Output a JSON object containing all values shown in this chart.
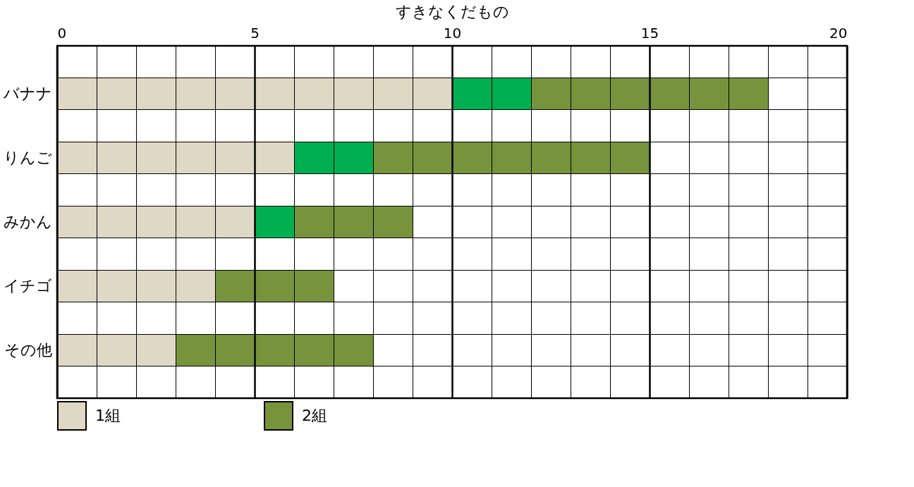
{
  "chart_data": {
    "type": "bar",
    "orientation": "horizontal",
    "stacked": true,
    "title": "すきなくだもの",
    "categories": [
      null,
      "バナナ",
      null,
      "りんご",
      null,
      "みかん",
      null,
      "イチゴ",
      null,
      "その他",
      null
    ],
    "series": [
      {
        "name": "1組",
        "color": "#ddd9c4",
        "values": [
          null,
          10,
          null,
          6,
          null,
          5,
          null,
          4,
          null,
          3,
          null
        ]
      },
      {
        "color": "#00b050",
        "values": [
          null,
          2,
          null,
          2,
          null,
          1,
          null,
          null,
          null,
          null,
          null
        ]
      },
      {
        "name": "2組",
        "color": "#77933c",
        "values": [
          null,
          6,
          null,
          7,
          null,
          3,
          null,
          3,
          null,
          5,
          null
        ]
      }
    ],
    "xlim": [
      0,
      20
    ],
    "xticks": [
      0,
      {
        "value": 1,
        "label": null
      },
      {
        "value": 2,
        "label": null
      },
      {
        "value": 3,
        "label": null
      },
      {
        "value": 4,
        "label": null
      },
      5,
      {
        "value": 6,
        "label": null
      },
      {
        "value": 7,
        "label": null
      },
      {
        "value": 8,
        "label": null
      },
      {
        "value": 9,
        "label": null
      },
      10,
      {
        "value": 11,
        "label": null
      },
      {
        "value": 12,
        "label": null
      },
      {
        "value": 13,
        "label": null
      },
      {
        "value": 14,
        "label": null
      },
      15,
      {
        "value": 16,
        "label": null
      },
      {
        "value": 17,
        "label": null
      },
      {
        "value": 18,
        "label": null
      },
      {
        "value": 19,
        "label": null
      },
      20
    ],
    "grid": true,
    "legend": "bottom"
  }
}
